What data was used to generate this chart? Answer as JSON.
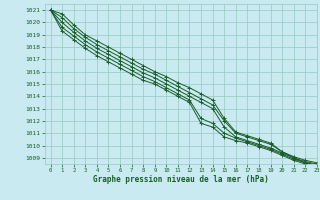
{
  "xlabel": "Graphe pression niveau de la mer (hPa)",
  "bg_color": "#c8eaf0",
  "grid_color": "#96c8be",
  "line_color": "#1a5c2a",
  "text_color": "#1a5c2a",
  "ylim": [
    1008.5,
    1021.5
  ],
  "xlim": [
    -0.5,
    23
  ],
  "yticks": [
    1009,
    1010,
    1011,
    1012,
    1013,
    1014,
    1015,
    1016,
    1017,
    1018,
    1019,
    1020,
    1021
  ],
  "xticks": [
    0,
    1,
    2,
    3,
    4,
    5,
    6,
    7,
    8,
    9,
    10,
    11,
    12,
    13,
    14,
    15,
    16,
    17,
    18,
    19,
    20,
    21,
    22,
    23
  ],
  "series": [
    [
      1021.0,
      1020.7,
      1019.8,
      1019.0,
      1018.5,
      1018.0,
      1017.5,
      1017.0,
      1016.5,
      1016.0,
      1015.6,
      1015.1,
      1014.7,
      1014.2,
      1013.7,
      1012.2,
      1011.1,
      1010.8,
      1010.5,
      1010.2,
      1009.5,
      1009.1,
      1008.8,
      1008.6
    ],
    [
      1021.0,
      1020.4,
      1019.5,
      1018.8,
      1018.2,
      1017.7,
      1017.2,
      1016.7,
      1016.2,
      1015.8,
      1015.3,
      1014.8,
      1014.3,
      1013.8,
      1013.3,
      1012.0,
      1011.0,
      1010.7,
      1010.4,
      1010.1,
      1009.5,
      1009.0,
      1008.7,
      1008.5
    ],
    [
      1021.0,
      1020.0,
      1019.2,
      1018.5,
      1017.9,
      1017.4,
      1016.9,
      1016.4,
      1015.9,
      1015.5,
      1015.0,
      1014.5,
      1014.0,
      1013.5,
      1013.0,
      1011.5,
      1010.7,
      1010.4,
      1010.1,
      1009.8,
      1009.4,
      1009.0,
      1008.6,
      1008.4
    ],
    [
      1021.0,
      1019.6,
      1018.9,
      1018.2,
      1017.6,
      1017.1,
      1016.6,
      1016.1,
      1015.6,
      1015.2,
      1014.7,
      1014.2,
      1013.7,
      1012.2,
      1011.8,
      1011.0,
      1010.6,
      1010.3,
      1010.0,
      1009.7,
      1009.3,
      1008.9,
      1008.6,
      1008.4
    ],
    [
      1021.0,
      1019.3,
      1018.6,
      1017.9,
      1017.3,
      1016.8,
      1016.3,
      1015.8,
      1015.3,
      1015.0,
      1014.5,
      1014.0,
      1013.5,
      1011.8,
      1011.5,
      1010.7,
      1010.4,
      1010.2,
      1009.9,
      1009.6,
      1009.2,
      1008.8,
      1008.5,
      1008.3
    ]
  ]
}
